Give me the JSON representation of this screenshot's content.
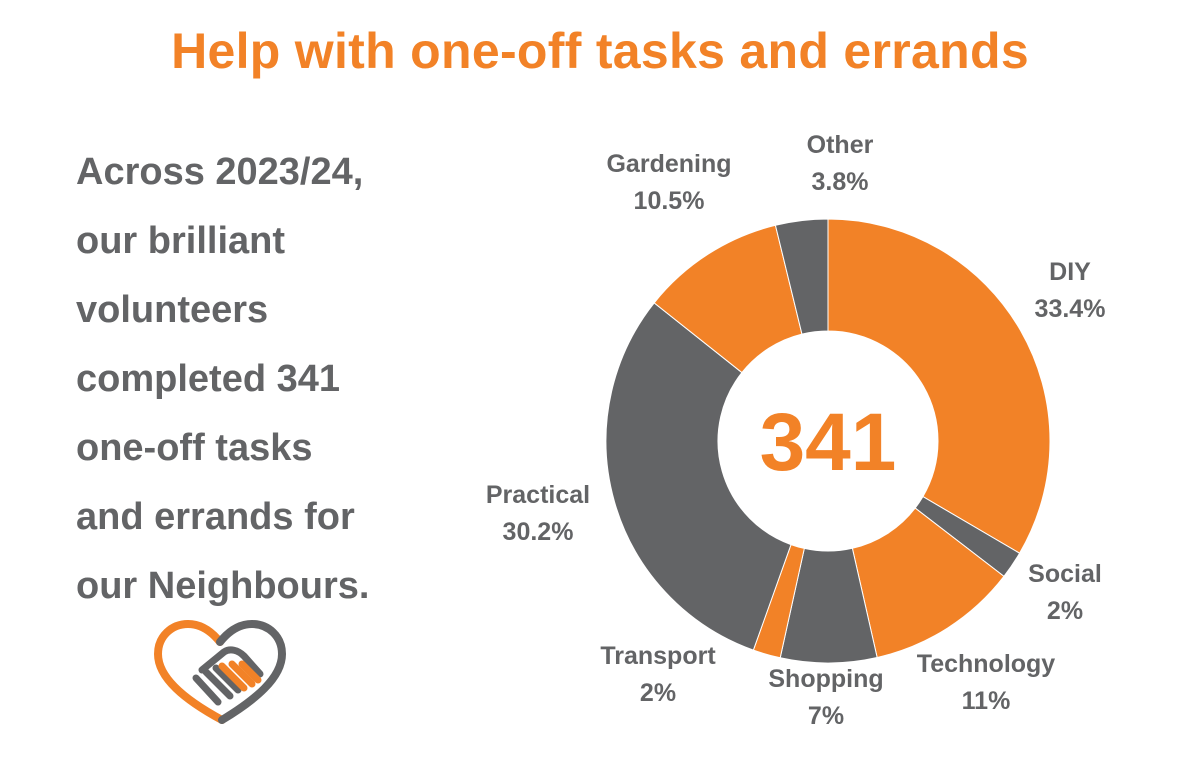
{
  "title": "Help with one-off tasks and errands",
  "intro": "Across 2023/24,\nour brilliant\nvolunteers\ncompleted 341\none-off tasks\nand errands for\nour Neighbours.",
  "logo_icon": "heart-handshake-icon",
  "colors": {
    "orange": "#f28227",
    "grey": "#636466",
    "white": "#ffffff"
  },
  "chart_data": {
    "type": "pie",
    "donut": true,
    "total": "341",
    "categories": [
      "DIY",
      "Social",
      "Technology",
      "Shopping",
      "Transport",
      "Practical",
      "Gardening",
      "Other"
    ],
    "values": [
      33.4,
      2,
      11,
      7,
      2,
      30.2,
      10.5,
      3.8
    ],
    "value_labels": [
      "33.4%",
      "2%",
      "11%",
      "7%",
      "2%",
      "30.2%",
      "10.5%",
      "3.8%"
    ],
    "slice_colors": [
      "#f28227",
      "#636466",
      "#f28227",
      "#636466",
      "#f28227",
      "#636466",
      "#f28227",
      "#636466"
    ],
    "start": "top, clockwise",
    "legend": "none"
  }
}
